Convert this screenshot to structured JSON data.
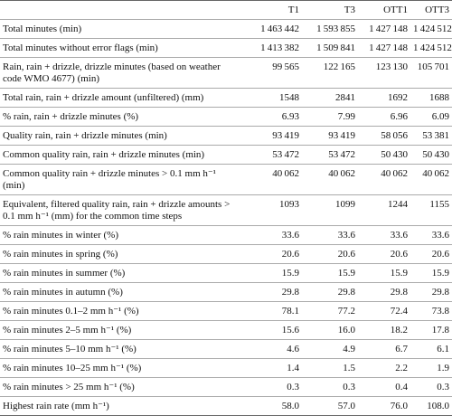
{
  "table": {
    "columns": [
      "T1",
      "T3",
      "OTT1",
      "OTT3"
    ],
    "rows": [
      {
        "label": "Total minutes (min)",
        "values": [
          "1 463 442",
          "1 593 855",
          "1 427 148",
          "1 424 512"
        ]
      },
      {
        "label": "Total minutes without error flags (min)",
        "values": [
          "1 413 382",
          "1 509 841",
          "1 427 148",
          "1 424 512"
        ]
      },
      {
        "label": "Rain, rain + drizzle, drizzle minutes (based on weather code WMO 4677) (min)",
        "values": [
          "99 565",
          "122 165",
          "123 130",
          "105 701"
        ]
      },
      {
        "label": "Total rain, rain + drizzle amount (unfiltered) (mm)",
        "values": [
          "1548",
          "2841",
          "1692",
          "1688"
        ]
      },
      {
        "label": "% rain, rain + drizzle minutes (%)",
        "values": [
          "6.93",
          "7.99",
          "6.96",
          "6.09"
        ]
      },
      {
        "label": "Quality rain, rain + drizzle minutes (min)",
        "values": [
          "93 419",
          "93 419",
          "58 056",
          "53 381"
        ]
      },
      {
        "label": "Common quality rain, rain + drizzle minutes (min)",
        "values": [
          "53 472",
          "53 472",
          "50 430",
          "50 430"
        ]
      },
      {
        "label": "Common quality rain + drizzle minutes > 0.1 mm h⁻¹ (min)",
        "values": [
          "40 062",
          "40 062",
          "40 062",
          "40 062"
        ]
      },
      {
        "label": "Equivalent, filtered quality rain, rain + drizzle amounts > 0.1 mm h⁻¹ (mm) for the common time steps",
        "values": [
          "1093",
          "1099",
          "1244",
          "1155"
        ]
      },
      {
        "label": "% rain minutes in winter (%)",
        "values": [
          "33.6",
          "33.6",
          "33.6",
          "33.6"
        ]
      },
      {
        "label": "% rain minutes in spring (%)",
        "values": [
          "20.6",
          "20.6",
          "20.6",
          "20.6"
        ]
      },
      {
        "label": "% rain minutes in summer (%)",
        "values": [
          "15.9",
          "15.9",
          "15.9",
          "15.9"
        ]
      },
      {
        "label": "% rain minutes in autumn (%)",
        "values": [
          "29.8",
          "29.8",
          "29.8",
          "29.8"
        ]
      },
      {
        "label": "% rain minutes 0.1–2 mm h⁻¹ (%)",
        "values": [
          "78.1",
          "77.2",
          "72.4",
          "73.8"
        ]
      },
      {
        "label": "% rain minutes 2–5 mm h⁻¹ (%)",
        "values": [
          "15.6",
          "16.0",
          "18.2",
          "17.8"
        ]
      },
      {
        "label": "% rain minutes 5–10 mm h⁻¹ (%)",
        "values": [
          "4.6",
          "4.9",
          "6.7",
          "6.1"
        ]
      },
      {
        "label": "% rain minutes 10–25 mm h⁻¹ (%)",
        "values": [
          "1.4",
          "1.5",
          "2.2",
          "1.9"
        ]
      },
      {
        "label": "% rain minutes > 25 mm h⁻¹ (%)",
        "values": [
          "0.3",
          "0.3",
          "0.4",
          "0.3"
        ]
      },
      {
        "label": "Highest rain rate (mm h⁻¹)",
        "values": [
          "58.0",
          "57.0",
          "76.0",
          "108.0"
        ]
      }
    ]
  }
}
